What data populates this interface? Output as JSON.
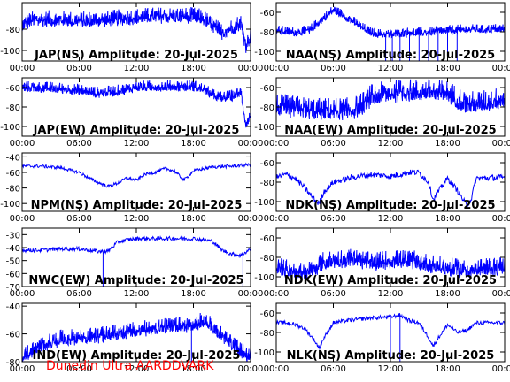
{
  "footer_text": "Dunedin Ultra AARDDVARK",
  "colors": {
    "trace": "#0000ff",
    "axes": "#000000",
    "footer": "#ff0000",
    "background": "#ffffff"
  },
  "chart_data": [
    {
      "type": "line",
      "title": "JAP(NS) Amplitude: 20-Jul-2025",
      "x_ticks": [
        "00:00",
        "06:00",
        "12:00",
        "18:00",
        "00:00"
      ],
      "y_ticks": [
        -80,
        -100
      ],
      "ylim": [
        -110,
        -55
      ],
      "xlim": [
        0,
        24
      ],
      "series": [
        {
          "x": [
            0,
            1,
            3,
            6,
            9,
            12,
            14,
            17,
            18,
            19,
            20,
            21,
            22,
            23,
            23.5,
            24
          ],
          "y": [
            -75,
            -71,
            -70,
            -71,
            -70,
            -68,
            -67,
            -67,
            -67,
            -69,
            -76,
            -82,
            -78,
            -73,
            -95,
            -86
          ],
          "band": 8,
          "spikes": []
        }
      ]
    },
    {
      "type": "line",
      "title": "NAA(NS) Amplitude: 20-Jul-2025",
      "x_ticks": [
        "00:00",
        "06:00",
        "12:00",
        "18:00",
        "00:00"
      ],
      "y_ticks": [
        -60,
        -80,
        -100
      ],
      "ylim": [
        -110,
        -50
      ],
      "xlim": [
        0,
        24
      ],
      "series": [
        {
          "x": [
            0,
            2,
            3.5,
            5,
            6,
            7,
            8,
            9,
            10,
            11,
            12,
            14,
            16,
            18,
            20,
            22,
            24
          ],
          "y": [
            -78,
            -80,
            -78,
            -65,
            -57,
            -62,
            -68,
            -75,
            -80,
            -82,
            -82,
            -80,
            -80,
            -78,
            -77,
            -77,
            -76
          ],
          "band": 5,
          "spikes": [
            11.5,
            12.2,
            13,
            14,
            15,
            16,
            17,
            18,
            19
          ]
        }
      ]
    },
    {
      "type": "line",
      "title": "JAP(EW) Amplitude: 20-Jul-2025",
      "x_ticks": [
        "00:00",
        "06:00",
        "12:00",
        "18:00",
        "00:00"
      ],
      "y_ticks": [
        -60,
        -80,
        -100
      ],
      "ylim": [
        -110,
        -50
      ],
      "xlim": [
        0,
        24
      ],
      "series": [
        {
          "x": [
            0,
            3,
            6,
            8,
            10,
            12,
            15,
            18,
            19,
            20,
            21,
            22,
            23,
            23.5,
            24
          ],
          "y": [
            -59,
            -60,
            -62,
            -65,
            -63,
            -59,
            -58,
            -58,
            -61,
            -67,
            -70,
            -68,
            -64,
            -97,
            -88
          ],
          "band": 6,
          "spikes": []
        }
      ]
    },
    {
      "type": "line",
      "title": "NAA(EW) Amplitude: 20-Jul-2025",
      "x_ticks": [
        "00:00",
        "06:00",
        "12:00",
        "18:00",
        "00:00"
      ],
      "y_ticks": [
        -60,
        -80,
        -100
      ],
      "ylim": [
        -110,
        -50
      ],
      "xlim": [
        0,
        24
      ],
      "series": [
        {
          "x": [
            0,
            2,
            4,
            6,
            8,
            9,
            10,
            12,
            14,
            16,
            18,
            20,
            22,
            24
          ],
          "y": [
            -78,
            -80,
            -82,
            -82,
            -82,
            -77,
            -68,
            -64,
            -63,
            -63,
            -64,
            -76,
            -74,
            -70
          ],
          "band": 12,
          "spikes": []
        }
      ]
    },
    {
      "type": "line",
      "title": "NPM(NS) Amplitude: 20-Jul-2025",
      "x_ticks": [
        "00:00",
        "06:00",
        "12:00",
        "18:00",
        "00:00"
      ],
      "y_ticks": [
        -40,
        -60,
        -80,
        -100
      ],
      "ylim": [
        -110,
        -35
      ],
      "xlim": [
        0,
        24
      ],
      "series": [
        {
          "x": [
            0,
            2,
            4,
            6,
            7,
            8,
            9,
            10,
            11,
            12,
            13,
            14,
            15,
            16,
            17,
            18,
            20,
            22,
            24
          ],
          "y": [
            -52,
            -52,
            -54,
            -60,
            -67,
            -73,
            -78,
            -74,
            -67,
            -70,
            -62,
            -60,
            -55,
            -58,
            -70,
            -58,
            -53,
            -52,
            -50
          ],
          "band": 2,
          "spikes": []
        }
      ]
    },
    {
      "type": "line",
      "title": "NDK(NS) Amplitude: 20-Jul-2025",
      "x_ticks": [
        "00:00",
        "06:00",
        "12:00",
        "18:00",
        "00:00"
      ],
      "y_ticks": [
        -60,
        -80,
        -100
      ],
      "ylim": [
        -110,
        -50
      ],
      "xlim": [
        0,
        24
      ],
      "series": [
        {
          "x": [
            0,
            1,
            2,
            3,
            4,
            4.5,
            5,
            6,
            8,
            10,
            12,
            14,
            15,
            16,
            16.5,
            17,
            18,
            19,
            20,
            20.5,
            21,
            24
          ],
          "y": [
            -75,
            -72,
            -76,
            -86,
            -98,
            -102,
            -90,
            -80,
            -75,
            -72,
            -74,
            -70,
            -70,
            -80,
            -98,
            -90,
            -76,
            -88,
            -104,
            -97,
            -76,
            -75
          ],
          "band": 3,
          "spikes": []
        }
      ]
    },
    {
      "type": "line",
      "title": "NWC(EW) Amplitude: 20-Jul-2025",
      "x_ticks": [
        "00:00",
        "06:00",
        "12:00",
        "18:00",
        "00:00"
      ],
      "y_ticks": [
        -30,
        -40,
        -50,
        -60,
        -70
      ],
      "ylim": [
        -70,
        -25
      ],
      "xlim": [
        0,
        24
      ],
      "series": [
        {
          "x": [
            0,
            2,
            4,
            6,
            8,
            9,
            10,
            11,
            12,
            14,
            16,
            18,
            20,
            21,
            22,
            23,
            24
          ],
          "y": [
            -42,
            -42,
            -41,
            -41,
            -43,
            -43,
            -36,
            -34,
            -33,
            -33,
            -33,
            -33,
            -35,
            -42,
            -45,
            -46,
            -41
          ],
          "band": 1.5,
          "spikes": [
            8.5,
            23.2
          ]
        }
      ]
    },
    {
      "type": "line",
      "title": "NDK(EW) Amplitude: 20-Jul-2025",
      "x_ticks": [
        "00:00",
        "06:00",
        "12:00",
        "18:00",
        "00:00"
      ],
      "y_ticks": [
        -60,
        -80,
        -100
      ],
      "ylim": [
        -110,
        -50
      ],
      "xlim": [
        0,
        24
      ],
      "series": [
        {
          "x": [
            0,
            2,
            3,
            4,
            5,
            6,
            8,
            10,
            12,
            14,
            16,
            18,
            20,
            22,
            24
          ],
          "y": [
            -90,
            -93,
            -96,
            -90,
            -84,
            -82,
            -80,
            -85,
            -82,
            -82,
            -86,
            -90,
            -92,
            -91,
            -88
          ],
          "band": 10,
          "spikes": []
        }
      ]
    },
    {
      "type": "line",
      "title": "IND(EW) Amplitude: 20-Jul-2025",
      "x_ticks": [
        "00:00",
        "06:00",
        "12:00",
        "18:00",
        "00:00"
      ],
      "y_ticks": [
        -40,
        -60,
        -80
      ],
      "ylim": [
        -80,
        -38
      ],
      "xlim": [
        0,
        24
      ],
      "series": [
        {
          "x": [
            0,
            1,
            2,
            4,
            6,
            8,
            10,
            12,
            14,
            16,
            18,
            19,
            20,
            21,
            22,
            23,
            24
          ],
          "y": [
            -75,
            -72,
            -68,
            -63,
            -62,
            -61,
            -59,
            -57,
            -55,
            -54,
            -53,
            -50,
            -54,
            -60,
            -66,
            -72,
            -76
          ],
          "band": 6,
          "spikes": [
            17.8
          ]
        }
      ]
    },
    {
      "type": "line",
      "title": "NLK(NS) Amplitude: 20-Jul-2025",
      "x_ticks": [
        "00:00",
        "06:00",
        "12:00",
        "18:00",
        "00:00"
      ],
      "y_ticks": [
        -60,
        -80,
        -100
      ],
      "ylim": [
        -110,
        -50
      ],
      "xlim": [
        0,
        24
      ],
      "series": [
        {
          "x": [
            0,
            1,
            2,
            3,
            4,
            4.5,
            5,
            6,
            8,
            10,
            12,
            13,
            14,
            15,
            16,
            16.5,
            17,
            18,
            19,
            20,
            21,
            24
          ],
          "y": [
            -70,
            -70,
            -72,
            -76,
            -88,
            -96,
            -86,
            -70,
            -67,
            -65,
            -64,
            -62,
            -68,
            -70,
            -85,
            -94,
            -86,
            -72,
            -80,
            -78,
            -70,
            -70
          ],
          "band": 2,
          "spikes": [
            12,
            13
          ]
        }
      ]
    }
  ]
}
